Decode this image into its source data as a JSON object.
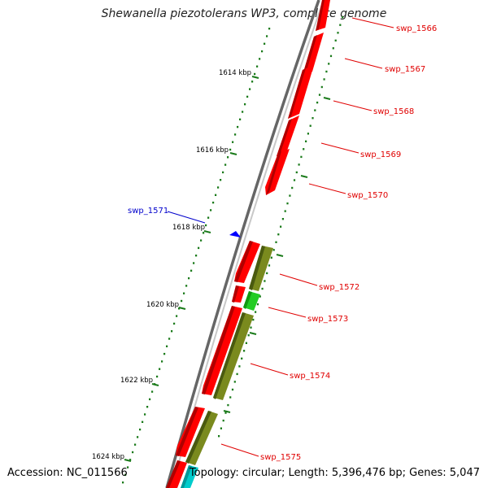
{
  "title": "Shewanella piezotolerans WP3, complete genome",
  "accession": "Accession: NC_011566",
  "summary": "Topology: circular; Length: 5,396,476 bp; Genes: 5,047",
  "colors": {
    "forward_gene": "#ff0000",
    "reverse_gene": "#0000ff",
    "olive_gene": "#7a8a1e",
    "green_gene": "#22cc22",
    "cyan_gene": "#00cccc",
    "ruler": "#1a7a1a",
    "backbone": "#888888"
  },
  "ruler_labels": [
    "1614 kbp",
    "1616 kbp",
    "1618 kbp",
    "1620 kbp",
    "1622 kbp",
    "1624 kbp"
  ],
  "gene_labels": [
    "swp_1566",
    "swp_1567",
    "swp_1568",
    "swp_1569",
    "swp_1570",
    "swp_1571",
    "swp_1572",
    "swp_1573",
    "swp_1574",
    "swp_1575"
  ]
}
